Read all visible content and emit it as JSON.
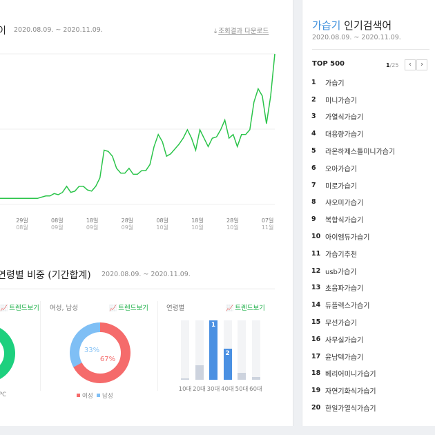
{
  "trend": {
    "title": "이",
    "date_range": "2020.08.09. ~ 2020.11.09.",
    "download_label": "조회결과 다운로드"
  },
  "chart_data": {
    "type": "line",
    "title": "",
    "color": "#2bc44a",
    "x_ticks": [
      {
        "day": "29일",
        "month": "08월"
      },
      {
        "day": "08일",
        "month": "09월"
      },
      {
        "day": "18일",
        "month": "09월"
      },
      {
        "day": "28일",
        "month": "09월"
      },
      {
        "day": "08일",
        "month": "10월"
      },
      {
        "day": "18일",
        "month": "10월"
      },
      {
        "day": "28일",
        "month": "10월"
      },
      {
        "day": "07일",
        "month": "11월"
      }
    ],
    "ylim": [
      0,
      100
    ],
    "values": [
      5,
      5,
      5,
      5,
      5,
      5,
      5,
      5,
      5,
      5,
      6,
      7,
      7,
      9,
      8,
      10,
      15,
      10,
      11,
      15,
      15,
      12,
      11,
      15,
      22,
      45,
      44,
      40,
      30,
      26,
      26,
      30,
      25,
      25,
      28,
      28,
      33,
      48,
      58,
      52,
      40,
      42,
      46,
      50,
      55,
      62,
      55,
      45,
      62,
      55,
      48,
      55,
      56,
      62,
      70,
      55,
      58,
      48,
      58,
      58,
      62,
      85,
      96,
      90,
      67,
      90,
      125
    ]
  },
  "ratio": {
    "title": "연령별 비중 (기간합계)",
    "date_range": "2020.08.09. ~ 2020.11.09.",
    "trend_link": "트렌드보기",
    "device_section": {
      "legend_partial": "PC",
      "color": "#1dd07e"
    },
    "gender_section": {
      "label": "여성, 남성",
      "female_pct": "67%",
      "male_pct": "33%",
      "female_value": 67,
      "male_value": 33,
      "female_color": "#f56b6b",
      "male_color": "#7fbff5",
      "legend_female": "여성",
      "legend_male": "남성"
    },
    "age_section": {
      "label": "연령별",
      "bars": [
        {
          "label": "10대",
          "value": 2,
          "rank": ""
        },
        {
          "label": "20대",
          "value": 24,
          "rank": ""
        },
        {
          "label": "30대",
          "value": 100,
          "rank": "1"
        },
        {
          "label": "40대",
          "value": 52,
          "rank": "2"
        },
        {
          "label": "50대",
          "value": 12,
          "rank": ""
        },
        {
          "label": "60대",
          "value": 5,
          "rank": ""
        }
      ],
      "highlight_color": "#4a90e2",
      "normal_color": "#cdd3de"
    }
  },
  "popular": {
    "keyword": "가습기",
    "title_rest": " 인기검색어",
    "date_range": "2020.08.09. ~ 2020.11.09.",
    "top_label": "TOP 500",
    "page_current": "1",
    "page_total": "/25",
    "items": [
      {
        "rank": "1",
        "keyword": "가습기"
      },
      {
        "rank": "2",
        "keyword": "미니가습기"
      },
      {
        "rank": "3",
        "keyword": "가열식가습기"
      },
      {
        "rank": "4",
        "keyword": "대용량가습기"
      },
      {
        "rank": "5",
        "keyword": "라온하제스틀미니가습기"
      },
      {
        "rank": "6",
        "keyword": "오아가습기"
      },
      {
        "rank": "7",
        "keyword": "미로가습기"
      },
      {
        "rank": "8",
        "keyword": "샤오미가습기"
      },
      {
        "rank": "9",
        "keyword": "복합식가습기"
      },
      {
        "rank": "10",
        "keyword": "아이엠듀가습기"
      },
      {
        "rank": "11",
        "keyword": "가습기추천"
      },
      {
        "rank": "12",
        "keyword": "usb가습기"
      },
      {
        "rank": "13",
        "keyword": "초음파가습기"
      },
      {
        "rank": "14",
        "keyword": "듀플렉스가습기"
      },
      {
        "rank": "15",
        "keyword": "무선가습기"
      },
      {
        "rank": "16",
        "keyword": "사무실가습기"
      },
      {
        "rank": "17",
        "keyword": "윤남텍가습기"
      },
      {
        "rank": "18",
        "keyword": "베리어미니가습기"
      },
      {
        "rank": "19",
        "keyword": "자연기화식가습기"
      },
      {
        "rank": "20",
        "keyword": "한일가열식가습기"
      }
    ]
  }
}
